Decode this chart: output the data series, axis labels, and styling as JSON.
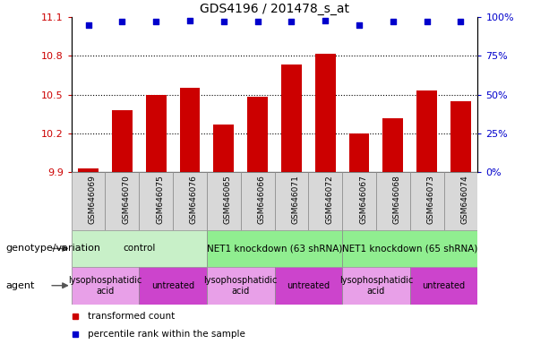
{
  "title": "GDS4196 / 201478_s_at",
  "samples": [
    "GSM646069",
    "GSM646070",
    "GSM646075",
    "GSM646076",
    "GSM646065",
    "GSM646066",
    "GSM646071",
    "GSM646072",
    "GSM646067",
    "GSM646068",
    "GSM646073",
    "GSM646074"
  ],
  "bar_values": [
    9.93,
    10.38,
    10.5,
    10.55,
    10.27,
    10.48,
    10.73,
    10.82,
    10.2,
    10.32,
    10.53,
    10.45
  ],
  "percentile_values": [
    95,
    97,
    97,
    98,
    97,
    97,
    97,
    98,
    95,
    97,
    97,
    97
  ],
  "ylim_left": [
    9.9,
    11.1
  ],
  "ylim_right": [
    0,
    100
  ],
  "yticks_left": [
    9.9,
    10.2,
    10.5,
    10.8,
    11.1
  ],
  "yticks_right": [
    0,
    25,
    50,
    75,
    100
  ],
  "ytick_labels_right": [
    "0%",
    "25%",
    "50%",
    "75%",
    "100%"
  ],
  "bar_color": "#cc0000",
  "percentile_color": "#0000cc",
  "bar_width": 0.6,
  "grid_yticks": [
    10.2,
    10.5,
    10.8
  ],
  "genotype_groups": [
    {
      "label": "control",
      "start": 0,
      "end": 4,
      "color": "#c8f0c8"
    },
    {
      "label": "NET1 knockdown (63 shRNA)",
      "start": 4,
      "end": 8,
      "color": "#90ee90"
    },
    {
      "label": "NET1 knockdown (65 shRNA)",
      "start": 8,
      "end": 12,
      "color": "#90ee90"
    }
  ],
  "agent_groups": [
    {
      "label": "lysophosphatidic\nacid",
      "start": 0,
      "end": 2,
      "color": "#e8a0e8"
    },
    {
      "label": "untreated",
      "start": 2,
      "end": 4,
      "color": "#cc44cc"
    },
    {
      "label": "lysophosphatidic\nacid",
      "start": 4,
      "end": 6,
      "color": "#e8a0e8"
    },
    {
      "label": "untreated",
      "start": 6,
      "end": 8,
      "color": "#cc44cc"
    },
    {
      "label": "lysophosphatidic\nacid",
      "start": 8,
      "end": 10,
      "color": "#e8a0e8"
    },
    {
      "label": "untreated",
      "start": 10,
      "end": 12,
      "color": "#cc44cc"
    }
  ],
  "sample_bg_color": "#d8d8d8",
  "left_tick_color": "#cc0000",
  "right_tick_color": "#0000cc",
  "legend_items": [
    {
      "label": "transformed count",
      "color": "#cc0000"
    },
    {
      "label": "percentile rank within the sample",
      "color": "#0000cc"
    }
  ],
  "genotype_label": "genotype/variation",
  "agent_label": "agent"
}
